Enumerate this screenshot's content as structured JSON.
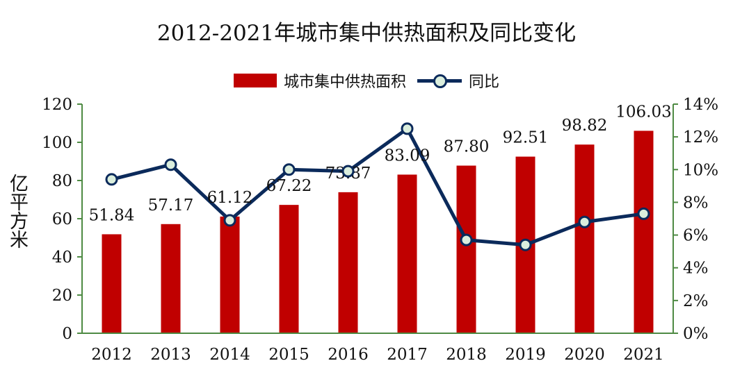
{
  "chart_data": {
    "type": "bar",
    "title": "2012-2021年城市集中供热面积及同比变化",
    "categories": [
      "2012",
      "2013",
      "2014",
      "2015",
      "2016",
      "2017",
      "2018",
      "2019",
      "2020",
      "2021"
    ],
    "series": [
      {
        "name": "城市集中供热面积",
        "type": "bar",
        "axis": "left",
        "values": [
          51.84,
          57.17,
          61.12,
          67.22,
          73.87,
          83.09,
          87.8,
          92.51,
          98.82,
          106.03
        ],
        "labels": [
          "51.84",
          "57.17",
          "61.12",
          "67.22",
          "73.87",
          "83.09",
          "87.80",
          "92.51",
          "98.82",
          "106.03"
        ]
      },
      {
        "name": "同比",
        "type": "line",
        "axis": "right",
        "values": [
          9.4,
          10.3,
          6.9,
          10.0,
          9.9,
          12.5,
          5.7,
          5.4,
          6.8,
          7.3
        ]
      }
    ],
    "ylabel": "亿平方米",
    "ylim": [
      0,
      120
    ],
    "yticks": [
      0,
      20,
      40,
      60,
      80,
      100,
      120
    ],
    "y2lim": [
      0,
      14
    ],
    "y2ticks": [
      "0%",
      "2%",
      "4%",
      "6%",
      "8%",
      "10%",
      "12%",
      "14%"
    ],
    "legend": "top-center",
    "grid": false,
    "colors": {
      "bar": "#c00000",
      "line": "#0b2a5b",
      "marker_fill": "#dbeedd",
      "axis": "#4e8a43"
    }
  }
}
